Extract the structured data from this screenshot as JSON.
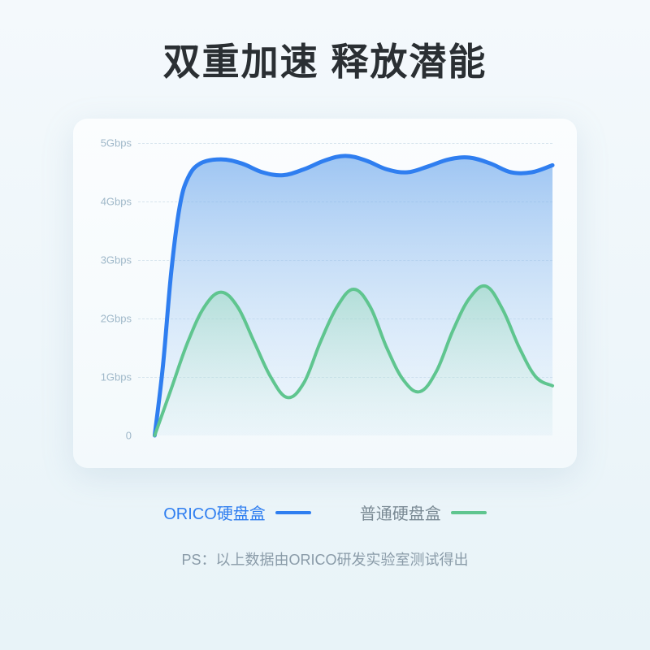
{
  "title": "双重加速 释放潜能",
  "legend": {
    "series1_label": "ORICO硬盘盒",
    "series2_label": "普通硬盘盒"
  },
  "footnote": "PS：以上数据由ORICO研发实验室测试得出",
  "chart": {
    "type": "area",
    "ylim": [
      0,
      5
    ],
    "ytick_step": 1,
    "y_unit": "Gbps",
    "y_ticks": [
      "0",
      "1Gbps",
      "2Gbps",
      "3Gbps",
      "4Gbps",
      "5Gbps"
    ],
    "grid_color": "#d6e4ed",
    "axis_label_color": "#9fb8c9",
    "axis_label_fontsize": 13,
    "background_color": "#fbfdfe",
    "card_radius": 18,
    "series": [
      {
        "name": "orico",
        "label": "ORICO硬盘盒",
        "stroke": "#2f7ef0",
        "stroke_width": 5,
        "fill_from": "rgba(108,167,236,0.65)",
        "fill_to": "rgba(200,225,248,0.15)",
        "points": [
          [
            0.04,
            0.0
          ],
          [
            0.06,
            1.2
          ],
          [
            0.08,
            2.8
          ],
          [
            0.1,
            3.9
          ],
          [
            0.12,
            4.4
          ],
          [
            0.15,
            4.65
          ],
          [
            0.2,
            4.72
          ],
          [
            0.25,
            4.65
          ],
          [
            0.3,
            4.5
          ],
          [
            0.35,
            4.45
          ],
          [
            0.4,
            4.55
          ],
          [
            0.45,
            4.7
          ],
          [
            0.5,
            4.78
          ],
          [
            0.55,
            4.7
          ],
          [
            0.6,
            4.55
          ],
          [
            0.65,
            4.5
          ],
          [
            0.7,
            4.6
          ],
          [
            0.75,
            4.72
          ],
          [
            0.8,
            4.75
          ],
          [
            0.85,
            4.65
          ],
          [
            0.9,
            4.5
          ],
          [
            0.95,
            4.5
          ],
          [
            1.0,
            4.62
          ]
        ]
      },
      {
        "name": "normal",
        "label": "普通硬盘盒",
        "stroke": "#5fc58f",
        "stroke_width": 4,
        "fill_from": "rgba(140,215,175,0.45)",
        "fill_to": "rgba(200,235,215,0.05)",
        "points": [
          [
            0.04,
            0.0
          ],
          [
            0.08,
            0.8
          ],
          [
            0.12,
            1.6
          ],
          [
            0.16,
            2.2
          ],
          [
            0.2,
            2.45
          ],
          [
            0.24,
            2.2
          ],
          [
            0.28,
            1.6
          ],
          [
            0.32,
            1.0
          ],
          [
            0.36,
            0.65
          ],
          [
            0.4,
            0.9
          ],
          [
            0.44,
            1.6
          ],
          [
            0.48,
            2.2
          ],
          [
            0.52,
            2.5
          ],
          [
            0.56,
            2.2
          ],
          [
            0.6,
            1.5
          ],
          [
            0.64,
            0.95
          ],
          [
            0.68,
            0.75
          ],
          [
            0.72,
            1.1
          ],
          [
            0.76,
            1.8
          ],
          [
            0.8,
            2.35
          ],
          [
            0.84,
            2.55
          ],
          [
            0.88,
            2.15
          ],
          [
            0.92,
            1.5
          ],
          [
            0.96,
            1.0
          ],
          [
            1.0,
            0.85
          ]
        ]
      }
    ]
  },
  "colors": {
    "title": "#2a2f33",
    "legend_series1": "#2f7ef0",
    "legend_series2": "#5fc58f",
    "footnote": "#8a9ba8"
  }
}
